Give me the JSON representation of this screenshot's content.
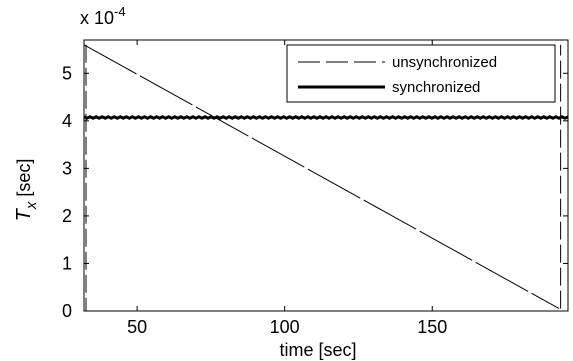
{
  "chart_data": {
    "type": "line",
    "xlabel": "time [sec]",
    "ylabel_main": "T",
    "ylabel_sub": "x",
    "ylabel_unit": " [sec]",
    "y_multiplier_base": "x 10",
    "y_multiplier_exp": "-4",
    "xlim": [
      32,
      196
    ],
    "ylim": [
      0,
      5.7
    ],
    "x_ticks": [
      50,
      100,
      150
    ],
    "y_ticks": [
      0,
      1,
      2,
      3,
      4,
      5
    ],
    "legend_position": "top-right",
    "series": [
      {
        "name": "unsynchronized",
        "style": "dashed-thin",
        "color": "#000000",
        "x": [
          32,
          193
        ],
        "y": [
          5.6,
          0.05
        ]
      },
      {
        "name": "synchronized",
        "style": "solid-thick",
        "color": "#000000",
        "x": [
          32,
          196
        ],
        "y": [
          4.07,
          4.07
        ]
      }
    ],
    "annotations": [
      {
        "kind": "sawtooth-jump",
        "series": "unsynchronized",
        "x": 193.5,
        "y_from": 0.05,
        "y_to": 5.6
      }
    ]
  }
}
